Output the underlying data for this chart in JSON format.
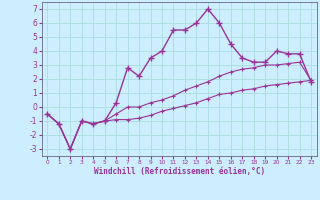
{
  "xlabel": "Windchill (Refroidissement éolien,°C)",
  "x": [
    0,
    1,
    2,
    3,
    4,
    5,
    6,
    7,
    8,
    9,
    10,
    11,
    12,
    13,
    14,
    15,
    16,
    17,
    18,
    19,
    20,
    21,
    22,
    23
  ],
  "line_main": [
    -0.5,
    -1.2,
    -3.0,
    -1.0,
    -1.2,
    -1.0,
    0.3,
    2.8,
    2.2,
    3.5,
    4.0,
    5.5,
    5.5,
    6.0,
    7.0,
    6.0,
    4.5,
    3.5,
    3.2,
    3.2,
    4.0,
    3.8,
    3.8,
    1.8
  ],
  "line_low": [
    -0.5,
    -1.2,
    -3.0,
    -1.0,
    -1.2,
    -1.0,
    -0.9,
    -0.9,
    -0.8,
    -0.6,
    -0.3,
    -0.1,
    0.1,
    0.3,
    0.6,
    0.9,
    1.0,
    1.2,
    1.3,
    1.5,
    1.6,
    1.7,
    1.8,
    1.9
  ],
  "line_mid": [
    -0.5,
    -1.2,
    -3.0,
    -1.0,
    -1.2,
    -1.0,
    -0.5,
    0.0,
    0.0,
    0.3,
    0.5,
    0.8,
    1.2,
    1.5,
    1.8,
    2.2,
    2.5,
    2.7,
    2.8,
    3.0,
    3.0,
    3.1,
    3.2,
    1.9
  ],
  "color": "#993399",
  "bg_color": "#cceeff",
  "grid_color": "#aadddd",
  "ylim": [
    -3.5,
    7.5
  ],
  "yticks": [
    -3,
    -2,
    -1,
    0,
    1,
    2,
    3,
    4,
    5,
    6,
    7
  ],
  "xlim": [
    -0.5,
    23.5
  ]
}
